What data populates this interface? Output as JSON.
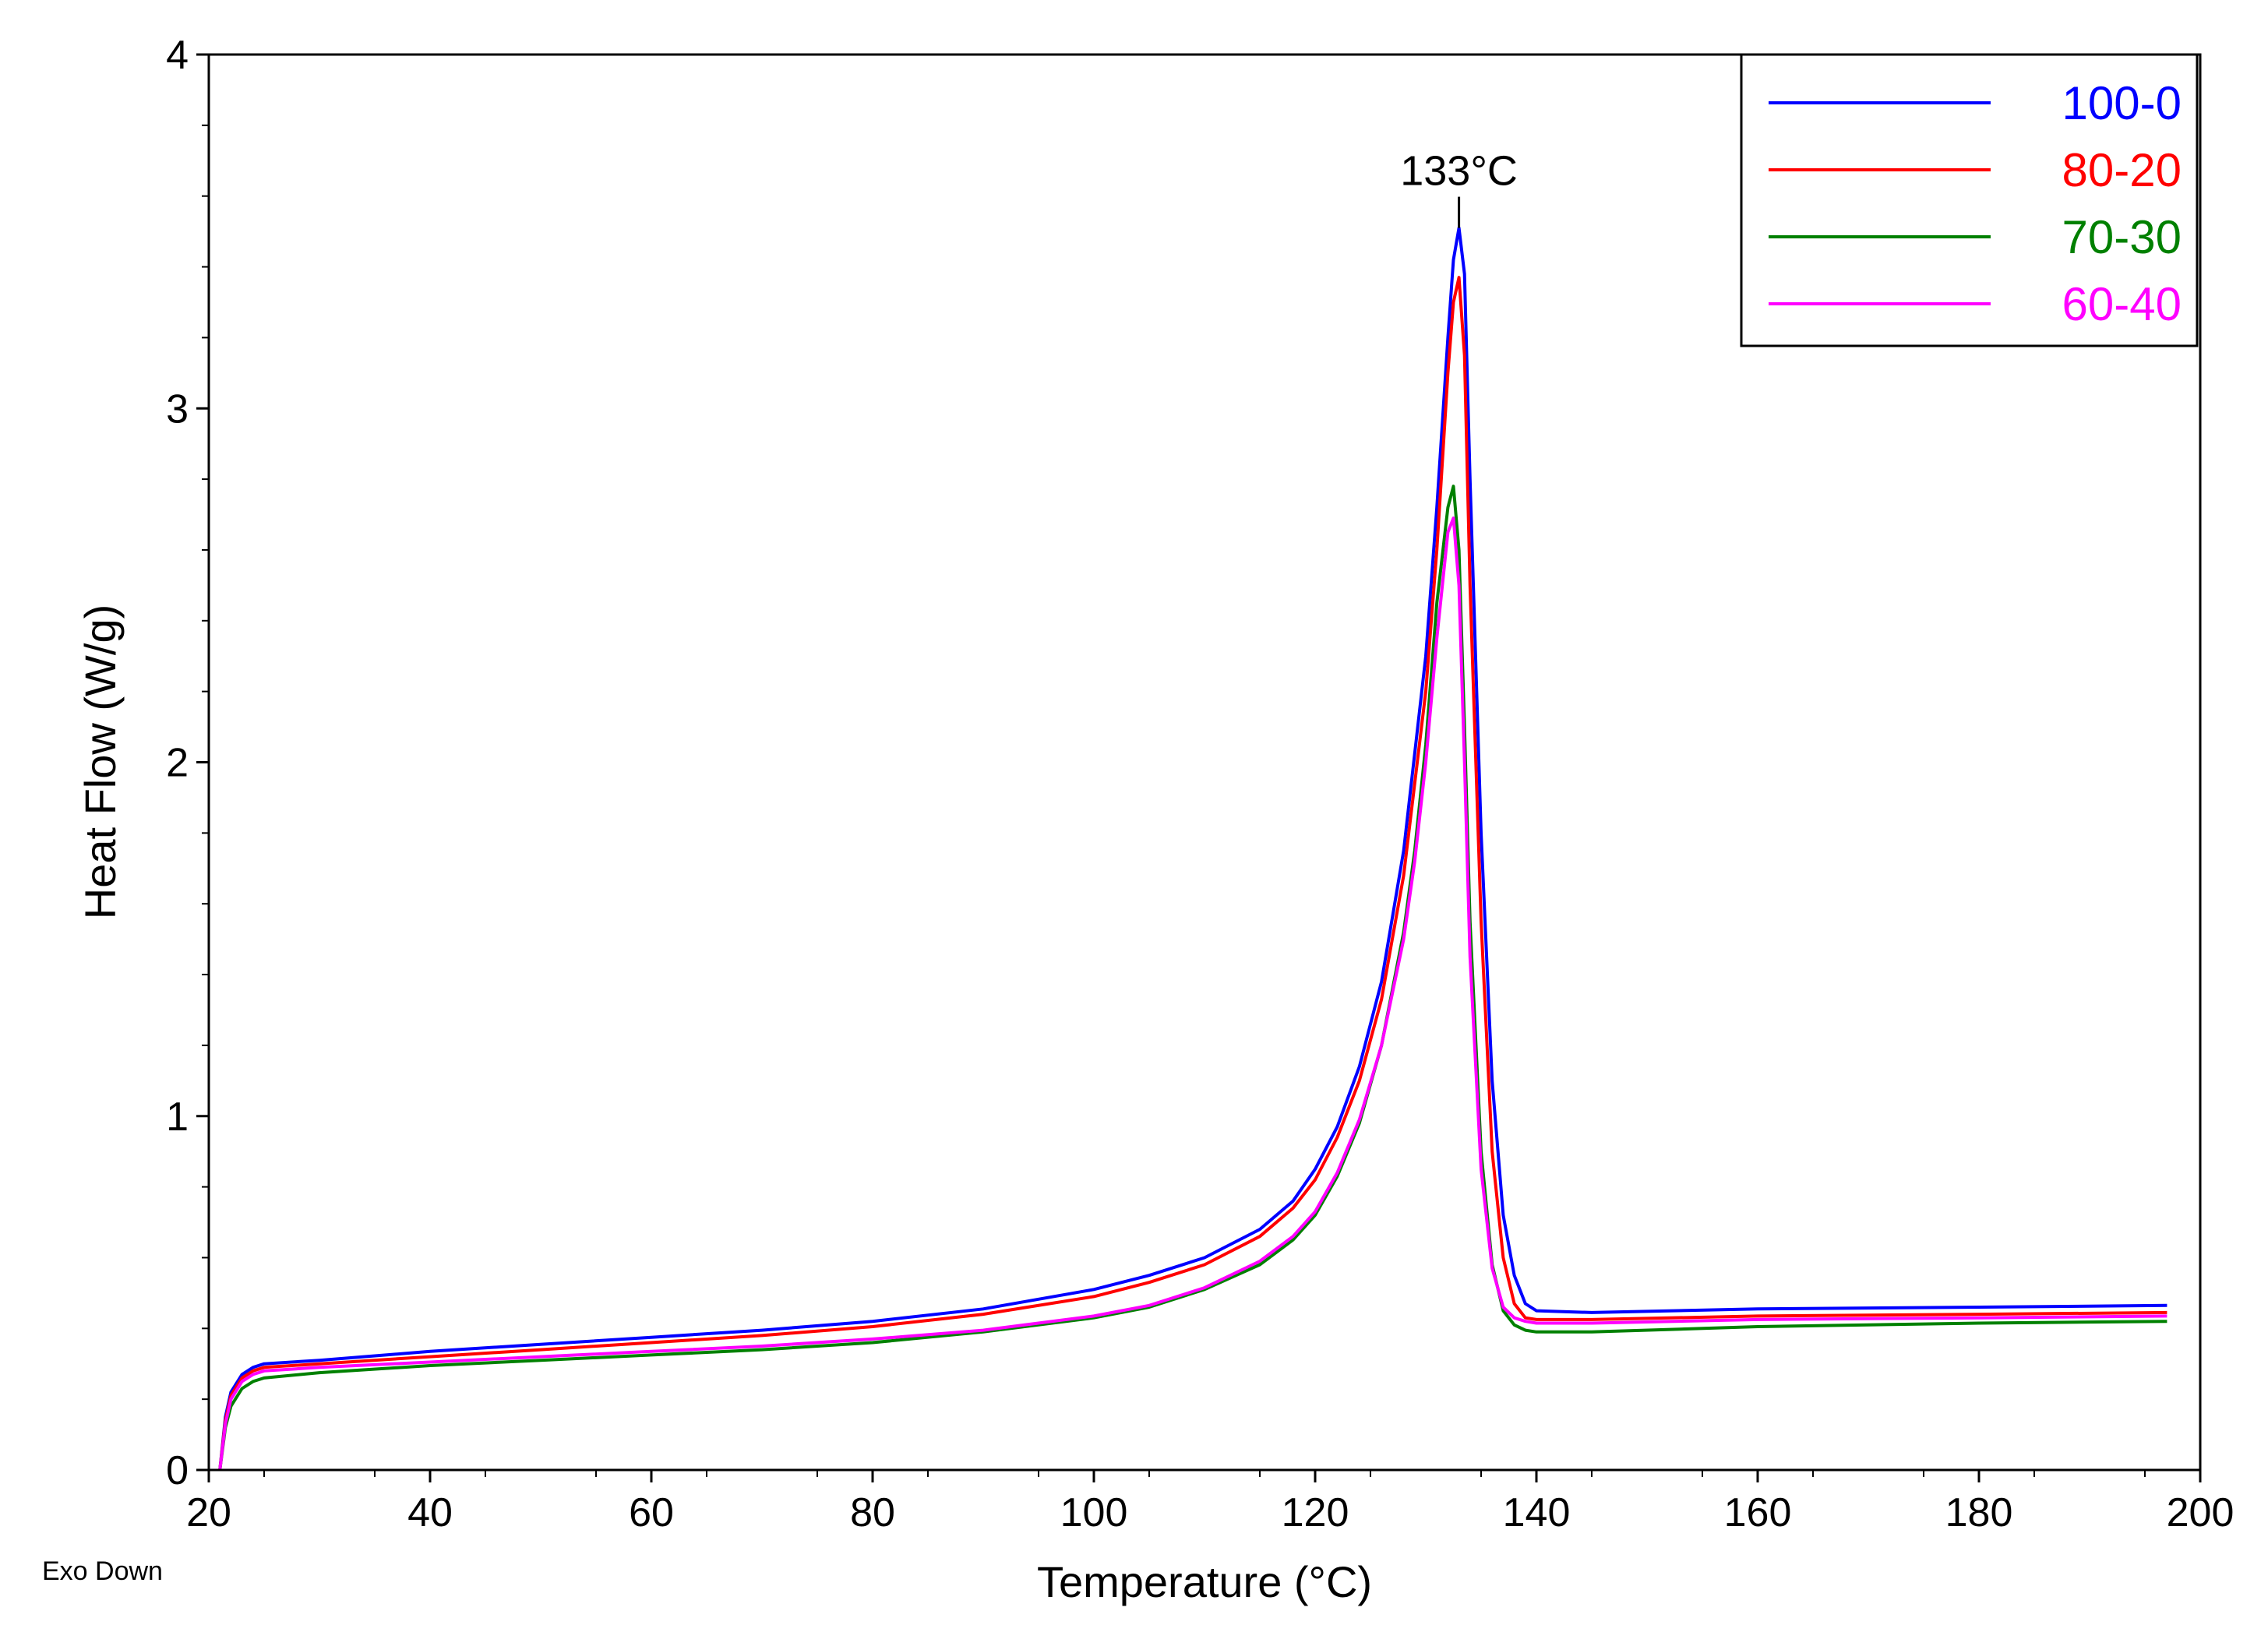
{
  "chart_data": {
    "type": "line",
    "xlabel": "Temperature (°C)",
    "ylabel": "Heat Flow (W/g)",
    "note": "Exo Down",
    "xlim": [
      20,
      200
    ],
    "ylim": [
      0,
      4
    ],
    "x_ticks": [
      20,
      40,
      60,
      80,
      100,
      120,
      140,
      160,
      180,
      200
    ],
    "y_ticks": [
      0,
      1,
      2,
      3,
      4
    ],
    "grid": false,
    "legend_position": "top-right",
    "annotation": {
      "text": "133°C",
      "x": 133,
      "y": 3.51
    },
    "series": [
      {
        "name": "100-0",
        "color": "#0000ff",
        "points": [
          [
            21,
            0
          ],
          [
            21.5,
            0.15
          ],
          [
            22,
            0.22
          ],
          [
            23,
            0.27
          ],
          [
            24,
            0.29
          ],
          [
            25,
            0.3
          ],
          [
            30,
            0.31
          ],
          [
            40,
            0.335
          ],
          [
            50,
            0.355
          ],
          [
            60,
            0.375
          ],
          [
            70,
            0.395
          ],
          [
            80,
            0.42
          ],
          [
            90,
            0.455
          ],
          [
            100,
            0.51
          ],
          [
            105,
            0.55
          ],
          [
            110,
            0.6
          ],
          [
            115,
            0.68
          ],
          [
            118,
            0.76
          ],
          [
            120,
            0.85
          ],
          [
            122,
            0.97
          ],
          [
            124,
            1.14
          ],
          [
            126,
            1.38
          ],
          [
            128,
            1.75
          ],
          [
            130,
            2.3
          ],
          [
            131,
            2.72
          ],
          [
            132,
            3.2
          ],
          [
            132.5,
            3.42
          ],
          [
            133,
            3.51
          ],
          [
            133.5,
            3.38
          ],
          [
            134,
            2.8
          ],
          [
            135,
            1.8
          ],
          [
            136,
            1.1
          ],
          [
            137,
            0.72
          ],
          [
            138,
            0.55
          ],
          [
            139,
            0.47
          ],
          [
            140,
            0.45
          ],
          [
            145,
            0.445
          ],
          [
            160,
            0.455
          ],
          [
            180,
            0.46
          ],
          [
            197,
            0.465
          ]
        ]
      },
      {
        "name": "80-20",
        "color": "#ff0000",
        "points": [
          [
            21,
            0
          ],
          [
            21.5,
            0.14
          ],
          [
            22,
            0.21
          ],
          [
            23,
            0.26
          ],
          [
            24,
            0.28
          ],
          [
            25,
            0.29
          ],
          [
            30,
            0.3
          ],
          [
            40,
            0.32
          ],
          [
            50,
            0.34
          ],
          [
            60,
            0.36
          ],
          [
            70,
            0.38
          ],
          [
            80,
            0.405
          ],
          [
            90,
            0.44
          ],
          [
            100,
            0.49
          ],
          [
            105,
            0.53
          ],
          [
            110,
            0.58
          ],
          [
            115,
            0.66
          ],
          [
            118,
            0.74
          ],
          [
            120,
            0.82
          ],
          [
            122,
            0.94
          ],
          [
            124,
            1.1
          ],
          [
            126,
            1.33
          ],
          [
            128,
            1.68
          ],
          [
            130,
            2.2
          ],
          [
            131,
            2.6
          ],
          [
            132,
            3.1
          ],
          [
            132.5,
            3.3
          ],
          [
            133,
            3.37
          ],
          [
            133.5,
            3.15
          ],
          [
            134,
            2.5
          ],
          [
            135,
            1.55
          ],
          [
            136,
            0.9
          ],
          [
            137,
            0.6
          ],
          [
            138,
            0.47
          ],
          [
            139,
            0.43
          ],
          [
            140,
            0.425
          ],
          [
            145,
            0.425
          ],
          [
            160,
            0.435
          ],
          [
            180,
            0.44
          ],
          [
            197,
            0.445
          ]
        ]
      },
      {
        "name": "70-30",
        "color": "#008000",
        "points": [
          [
            21,
            0
          ],
          [
            21.5,
            0.12
          ],
          [
            22,
            0.18
          ],
          [
            23,
            0.23
          ],
          [
            24,
            0.25
          ],
          [
            25,
            0.26
          ],
          [
            30,
            0.275
          ],
          [
            40,
            0.295
          ],
          [
            50,
            0.31
          ],
          [
            60,
            0.325
          ],
          [
            70,
            0.34
          ],
          [
            80,
            0.36
          ],
          [
            90,
            0.39
          ],
          [
            100,
            0.43
          ],
          [
            105,
            0.46
          ],
          [
            110,
            0.51
          ],
          [
            115,
            0.58
          ],
          [
            118,
            0.65
          ],
          [
            120,
            0.72
          ],
          [
            122,
            0.83
          ],
          [
            124,
            0.98
          ],
          [
            126,
            1.2
          ],
          [
            128,
            1.52
          ],
          [
            129,
            1.75
          ],
          [
            130,
            2.05
          ],
          [
            131,
            2.45
          ],
          [
            132,
            2.72
          ],
          [
            132.5,
            2.78
          ],
          [
            133,
            2.6
          ],
          [
            133.5,
            2.1
          ],
          [
            134,
            1.55
          ],
          [
            135,
            0.9
          ],
          [
            136,
            0.58
          ],
          [
            137,
            0.45
          ],
          [
            138,
            0.41
          ],
          [
            139,
            0.395
          ],
          [
            140,
            0.39
          ],
          [
            145,
            0.39
          ],
          [
            160,
            0.405
          ],
          [
            180,
            0.415
          ],
          [
            197,
            0.42
          ]
        ]
      },
      {
        "name": "60-40",
        "color": "#ff00ff",
        "points": [
          [
            21,
            0
          ],
          [
            21.5,
            0.13
          ],
          [
            22,
            0.2
          ],
          [
            23,
            0.25
          ],
          [
            24,
            0.27
          ],
          [
            25,
            0.28
          ],
          [
            30,
            0.29
          ],
          [
            40,
            0.305
          ],
          [
            50,
            0.32
          ],
          [
            60,
            0.335
          ],
          [
            70,
            0.35
          ],
          [
            80,
            0.37
          ],
          [
            90,
            0.395
          ],
          [
            100,
            0.435
          ],
          [
            105,
            0.465
          ],
          [
            110,
            0.515
          ],
          [
            115,
            0.59
          ],
          [
            118,
            0.66
          ],
          [
            120,
            0.73
          ],
          [
            122,
            0.84
          ],
          [
            124,
            0.99
          ],
          [
            126,
            1.2
          ],
          [
            128,
            1.5
          ],
          [
            129,
            1.72
          ],
          [
            130,
            2.0
          ],
          [
            131,
            2.35
          ],
          [
            132,
            2.65
          ],
          [
            132.5,
            2.69
          ],
          [
            133,
            2.5
          ],
          [
            133.5,
            2.0
          ],
          [
            134,
            1.45
          ],
          [
            135,
            0.85
          ],
          [
            136,
            0.57
          ],
          [
            137,
            0.46
          ],
          [
            138,
            0.43
          ],
          [
            139,
            0.42
          ],
          [
            140,
            0.415
          ],
          [
            145,
            0.415
          ],
          [
            160,
            0.425
          ],
          [
            180,
            0.43
          ],
          [
            197,
            0.435
          ]
        ]
      }
    ]
  }
}
